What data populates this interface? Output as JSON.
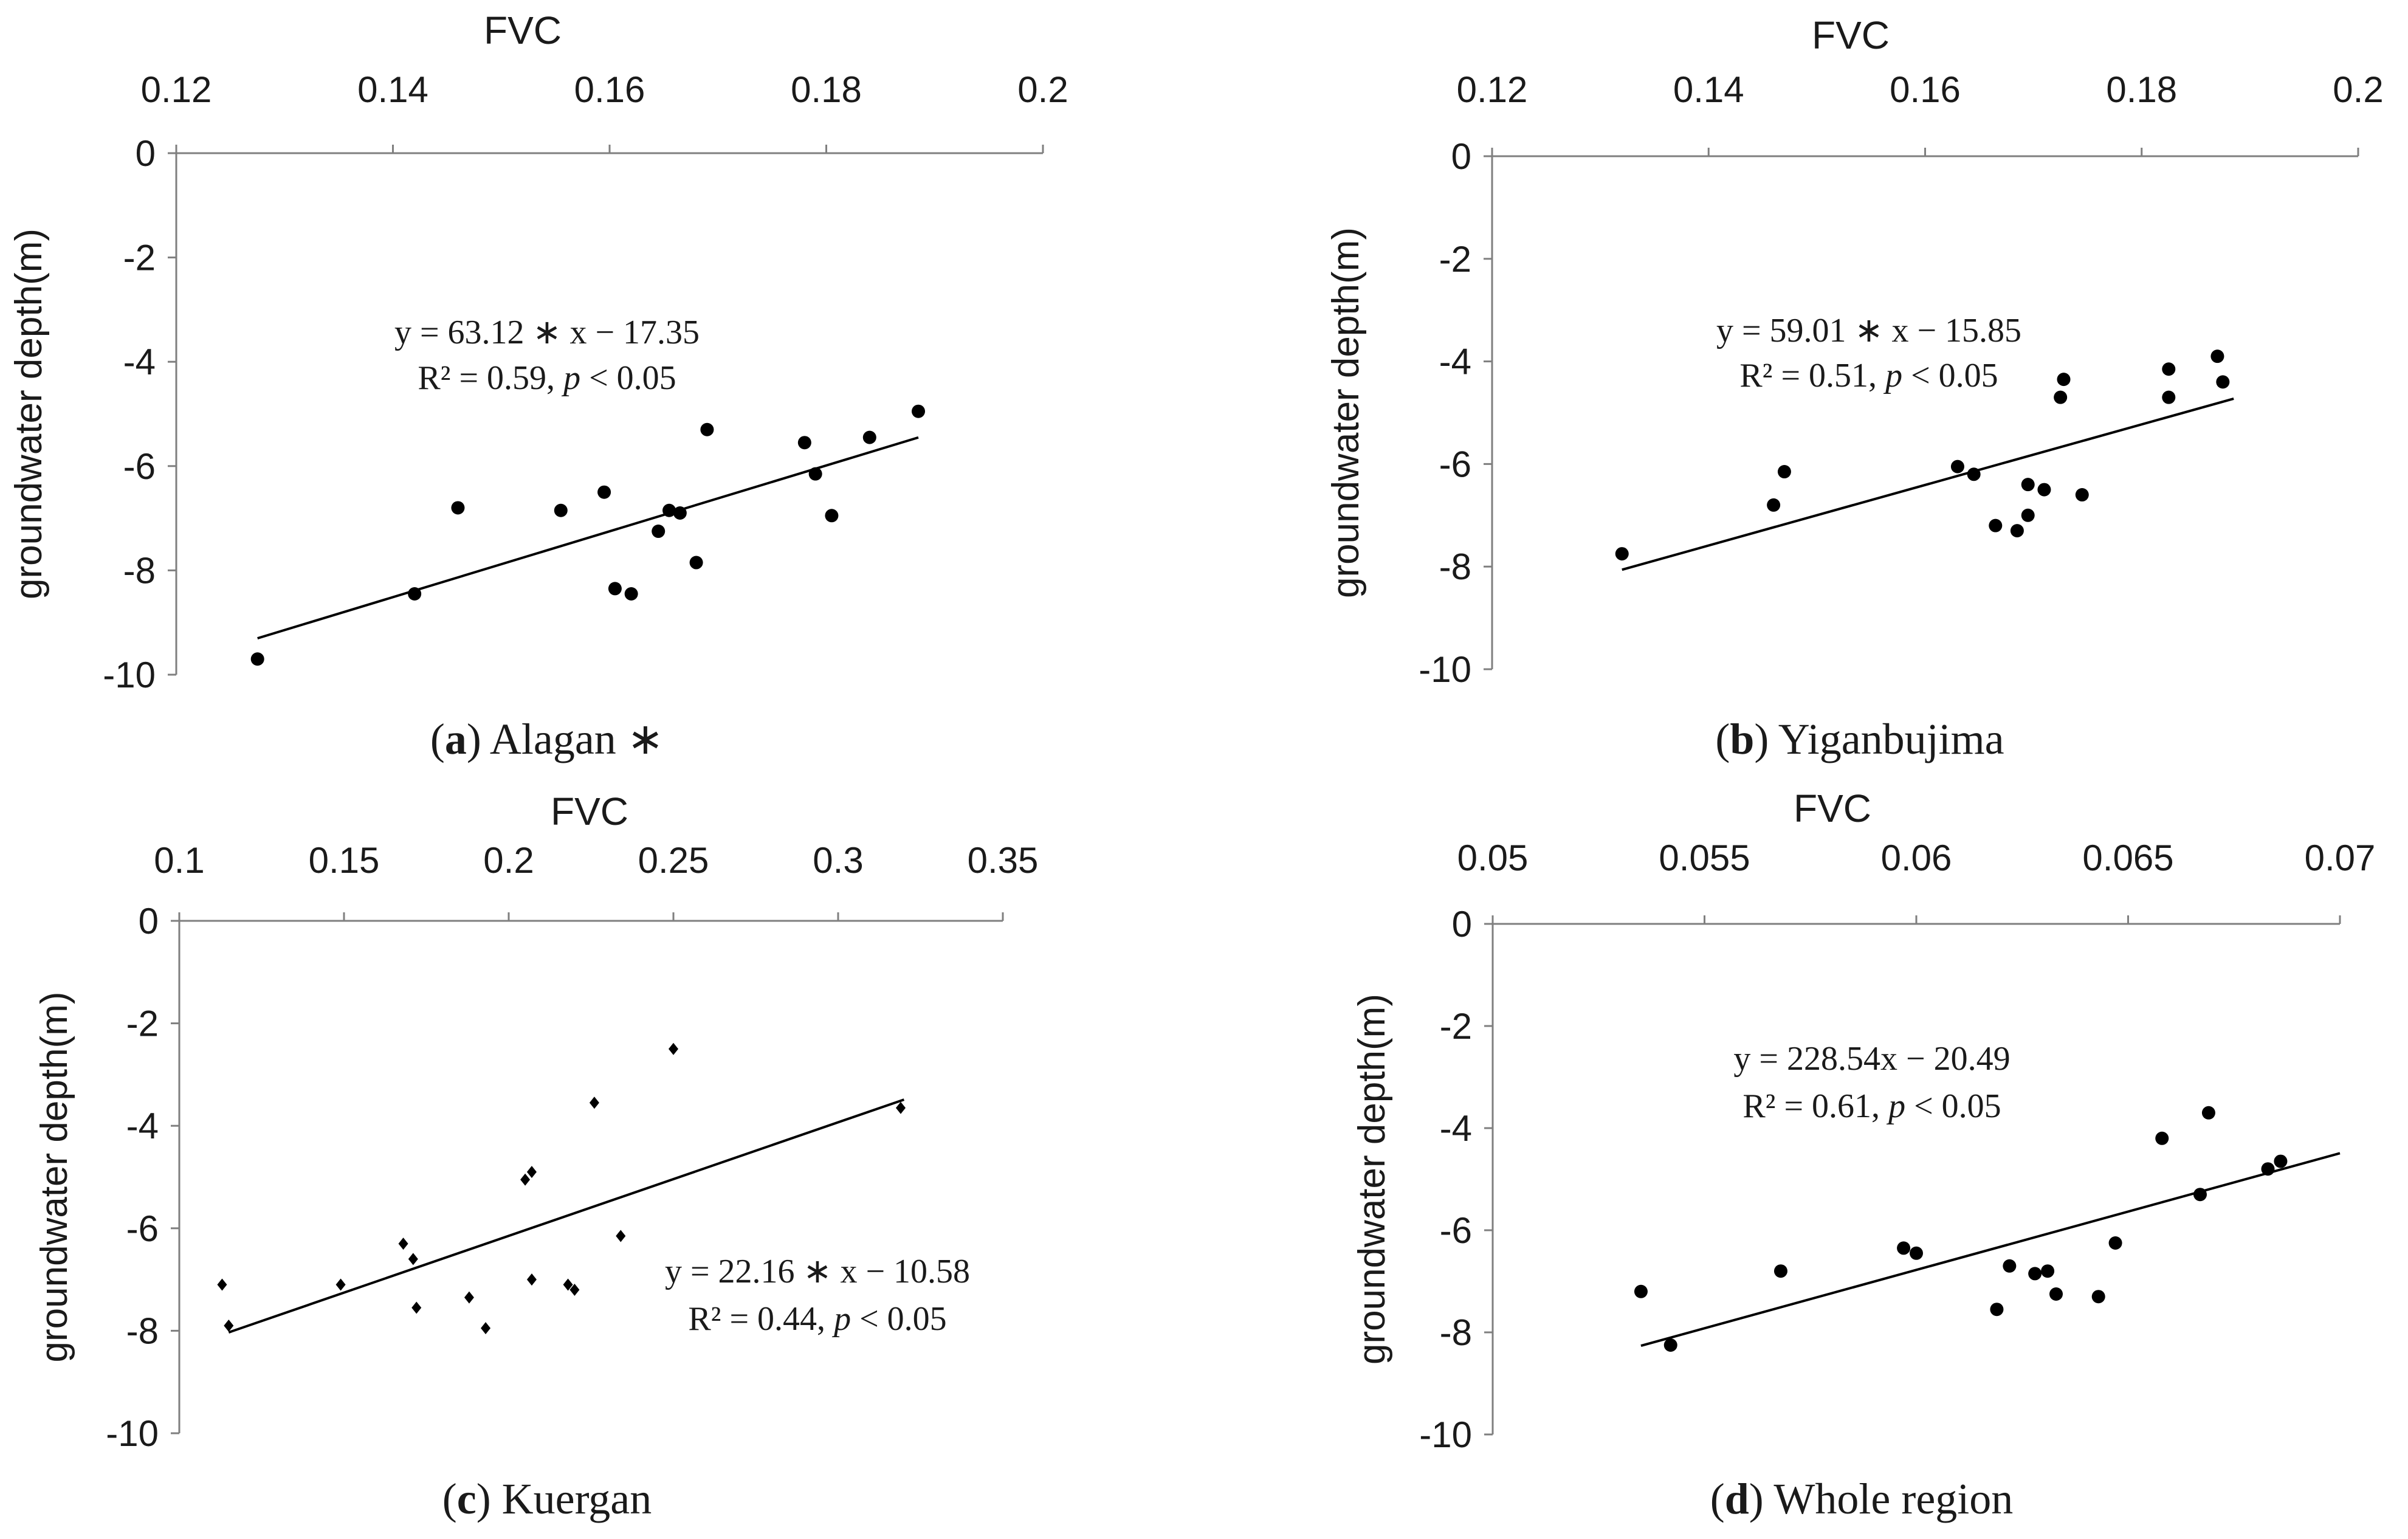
{
  "chart_data": [
    {
      "type": "scatter",
      "panel": "a",
      "caption_letter": "a",
      "caption_text": "Alagan ∗",
      "xlabel": "FVC",
      "ylabel": "groundwater depth(m)",
      "xlim": [
        0.12,
        0.2
      ],
      "ylim": [
        -10,
        0
      ],
      "x_ticks": [
        "0.12",
        "0.14",
        "0.16",
        "0.18",
        "0.2"
      ],
      "y_ticks": [
        "0",
        "-2",
        "-4",
        "-6",
        "-8",
        "-10"
      ],
      "equation": "y = 63.12 ∗ x − 17.35",
      "r2_text": "R² = 0.59, ",
      "p_text": "p",
      "p_rest": " < 0.05",
      "marker": "circle",
      "trendline": {
        "slope": 63.12,
        "intercept": -17.35,
        "x_range": [
          0.1275,
          0.1885
        ]
      },
      "points": [
        {
          "x": 0.1275,
          "y": -9.7
        },
        {
          "x": 0.142,
          "y": -8.45
        },
        {
          "x": 0.146,
          "y": -6.8
        },
        {
          "x": 0.1555,
          "y": -6.85
        },
        {
          "x": 0.1595,
          "y": -6.5
        },
        {
          "x": 0.1605,
          "y": -8.35
        },
        {
          "x": 0.162,
          "y": -8.45
        },
        {
          "x": 0.1645,
          "y": -7.25
        },
        {
          "x": 0.1655,
          "y": -6.85
        },
        {
          "x": 0.1665,
          "y": -6.9
        },
        {
          "x": 0.168,
          "y": -7.85
        },
        {
          "x": 0.169,
          "y": -5.3
        },
        {
          "x": 0.178,
          "y": -5.55
        },
        {
          "x": 0.179,
          "y": -6.15
        },
        {
          "x": 0.1805,
          "y": -6.95
        },
        {
          "x": 0.184,
          "y": -5.45
        },
        {
          "x": 0.1885,
          "y": -4.95
        }
      ]
    },
    {
      "type": "scatter",
      "panel": "b",
      "caption_letter": "b",
      "caption_text": "Yiganbujima",
      "xlabel": "FVC",
      "ylabel": "groundwater depth(m)",
      "xlim": [
        0.12,
        0.2
      ],
      "ylim": [
        -10,
        0
      ],
      "x_ticks": [
        "0.12",
        "0.14",
        "0.16",
        "0.18",
        "0.2"
      ],
      "y_ticks": [
        "0",
        "-2",
        "-4",
        "-6",
        "-8",
        "-10"
      ],
      "equation": "y = 59.01 ∗ x − 15.85",
      "r2_text": "R² = 0.51, ",
      "p_text": "p",
      "p_rest": " < 0.05",
      "marker": "circle",
      "trendline": {
        "slope": 59.01,
        "intercept": -15.85,
        "x_range": [
          0.132,
          0.1885
        ]
      },
      "points": [
        {
          "x": 0.132,
          "y": -7.75
        },
        {
          "x": 0.146,
          "y": -6.8
        },
        {
          "x": 0.147,
          "y": -6.15
        },
        {
          "x": 0.163,
          "y": -6.05
        },
        {
          "x": 0.1645,
          "y": -6.2
        },
        {
          "x": 0.1665,
          "y": -7.2
        },
        {
          "x": 0.1685,
          "y": -7.3
        },
        {
          "x": 0.1695,
          "y": -6.4
        },
        {
          "x": 0.1695,
          "y": -7.0
        },
        {
          "x": 0.171,
          "y": -6.5
        },
        {
          "x": 0.1725,
          "y": -4.7
        },
        {
          "x": 0.1728,
          "y": -4.35
        },
        {
          "x": 0.1745,
          "y": -6.6
        },
        {
          "x": 0.1825,
          "y": -4.15
        },
        {
          "x": 0.1825,
          "y": -4.7
        },
        {
          "x": 0.187,
          "y": -3.9
        },
        {
          "x": 0.1875,
          "y": -4.4
        }
      ]
    },
    {
      "type": "scatter",
      "panel": "c",
      "caption_letter": "c",
      "caption_text": "Kuergan",
      "xlabel": "FVC",
      "ylabel": "groundwater depth(m)",
      "xlim": [
        0.1,
        0.35
      ],
      "ylim": [
        -10,
        0
      ],
      "x_ticks": [
        "0.1",
        "0.15",
        "0.2",
        "0.25",
        "0.3",
        "0.35"
      ],
      "y_ticks": [
        "0",
        "-2",
        "-4",
        "-6",
        "-8",
        "-10"
      ],
      "equation": "y = 22.16 ∗ x − 10.58",
      "r2_text": "R² = 0.44, ",
      "p_text": "p",
      "p_rest": " < 0.05",
      "marker": "diamond",
      "trendline": {
        "slope": 22.16,
        "intercept": -10.58,
        "x_range": [
          0.115,
          0.32
        ]
      },
      "points": [
        {
          "x": 0.113,
          "y": -7.1
        },
        {
          "x": 0.115,
          "y": -7.9
        },
        {
          "x": 0.149,
          "y": -7.1
        },
        {
          "x": 0.168,
          "y": -6.3
        },
        {
          "x": 0.171,
          "y": -6.6
        },
        {
          "x": 0.172,
          "y": -7.55
        },
        {
          "x": 0.188,
          "y": -7.35
        },
        {
          "x": 0.193,
          "y": -7.95
        },
        {
          "x": 0.205,
          "y": -5.05
        },
        {
          "x": 0.207,
          "y": -4.9
        },
        {
          "x": 0.207,
          "y": -7.0
        },
        {
          "x": 0.218,
          "y": -7.1
        },
        {
          "x": 0.22,
          "y": -7.2
        },
        {
          "x": 0.226,
          "y": -3.55
        },
        {
          "x": 0.234,
          "y": -6.15
        },
        {
          "x": 0.25,
          "y": -2.5
        },
        {
          "x": 0.319,
          "y": -3.65
        }
      ]
    },
    {
      "type": "scatter",
      "panel": "d",
      "caption_letter": "d",
      "caption_text": "Whole region",
      "xlabel": "FVC",
      "ylabel": "groundwater depth(m)",
      "xlim": [
        0.05,
        0.07
      ],
      "ylim": [
        -10,
        0
      ],
      "x_ticks": [
        "0.05",
        "0.055",
        "0.06",
        "0.065",
        "0.07"
      ],
      "y_ticks": [
        "0",
        "-2",
        "-4",
        "-6",
        "-8",
        "-10"
      ],
      "equation": "y = 228.54x − 20.49",
      "r2_text": "R² = 0.61, ",
      "p_text": "p",
      "p_rest": " < 0.05",
      "marker": "circle",
      "trendline": {
        "slope": 228.54,
        "intercept": -20.49,
        "x_range": [
          0.0535,
          0.07
        ]
      },
      "points": [
        {
          "x": 0.0535,
          "y": -7.2
        },
        {
          "x": 0.0542,
          "y": -8.25
        },
        {
          "x": 0.0568,
          "y": -6.8
        },
        {
          "x": 0.0597,
          "y": -6.35
        },
        {
          "x": 0.06,
          "y": -6.45
        },
        {
          "x": 0.0619,
          "y": -7.55
        },
        {
          "x": 0.0622,
          "y": -6.7
        },
        {
          "x": 0.0628,
          "y": -6.85
        },
        {
          "x": 0.0631,
          "y": -6.8
        },
        {
          "x": 0.0633,
          "y": -7.25
        },
        {
          "x": 0.0643,
          "y": -7.3
        },
        {
          "x": 0.0647,
          "y": -6.25
        },
        {
          "x": 0.0658,
          "y": -4.2
        },
        {
          "x": 0.0667,
          "y": -5.3
        },
        {
          "x": 0.0669,
          "y": -3.7
        },
        {
          "x": 0.0683,
          "y": -4.8
        },
        {
          "x": 0.0686,
          "y": -4.65
        }
      ]
    }
  ]
}
